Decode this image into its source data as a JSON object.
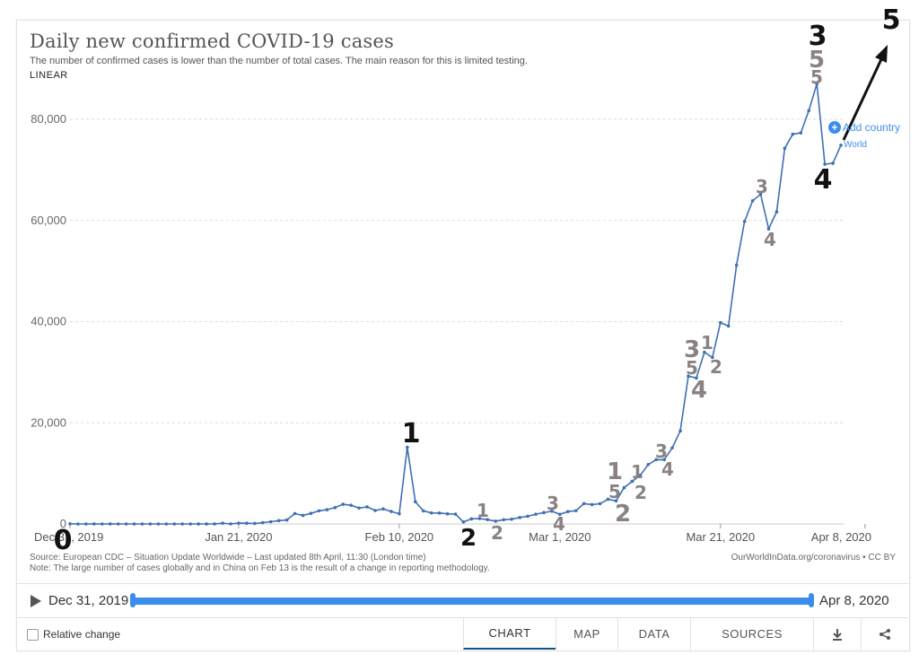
{
  "header": {
    "title": "Daily new confirmed COVID-19 cases",
    "subtitle": "The number of confirmed cases is lower than the number of total cases. The main reason for this is limited testing.",
    "scale": "LINEAR"
  },
  "controls": {
    "add_country": "Add country",
    "series_label": "World"
  },
  "footer_notes": {
    "source": "Source: European CDC – Situation Update Worldwide – Last updated 8th April, 11:30 (London time)",
    "note": "Note: The large number of cases globally and in China on Feb 13 is the result of a change in reporting methodology.",
    "owid": "OurWorldInData.org/coronavirus • CC BY"
  },
  "timeline": {
    "play_icon": "play-icon",
    "start": "Dec 31, 2019",
    "end": "Apr 8, 2020"
  },
  "bottom_bar": {
    "relative_change": "Relative change",
    "tabs": [
      "CHART",
      "MAP",
      "DATA",
      "SOURCES"
    ],
    "active_tab": "CHART",
    "download_icon": "download-icon",
    "share_icon": "share-icon"
  },
  "colors": {
    "line": "#3f6fb5",
    "accent": "#3d8ded",
    "annotation_black": "#111111",
    "annotation_gray": "#8a8282"
  },
  "chart_data": {
    "type": "line",
    "title": "Daily new confirmed COVID-19 cases",
    "xlabel": "",
    "ylabel": "",
    "x_ticks": [
      "Dec 31, 2019",
      "Jan 21, 2020",
      "Feb 10, 2020",
      "Mar 1, 2020",
      "Mar 21, 2020",
      "Apr 8, 2020"
    ],
    "y_ticks": [
      "0",
      "20,000",
      "40,000",
      "60,000",
      "80,000"
    ],
    "ylim": [
      0,
      90000
    ],
    "grid": "horizontal-dashed",
    "series": [
      {
        "name": "World",
        "values": [
          27,
          0,
          0,
          17,
          0,
          15,
          0,
          0,
          0,
          0,
          0,
          1,
          0,
          0,
          0,
          1,
          5,
          4,
          17,
          136,
          19,
          151,
          140,
          97,
          259,
          441,
          665,
          787,
          2062,
          1690,
          2099,
          2589,
          2825,
          3235,
          3884,
          3694,
          3143,
          3385,
          2652,
          2984,
          2473,
          2022,
          15153,
          4398,
          2587,
          2187,
          2160,
          2002,
          1945,
          396,
          1008,
          1079,
          858,
          557,
          837,
          946,
          1269,
          1517,
          1927,
          2243,
          2536,
          1897,
          2449,
          2617,
          4025,
          3826,
          4011,
          4883,
          4560,
          7165,
          8432,
          9619,
          11745,
          12712,
          12697,
          15054,
          18396,
          29232,
          28854,
          33960,
          32916,
          39803,
          39126,
          51173,
          59822,
          63888,
          65181,
          58348,
          61713,
          74273,
          77055,
          77322,
          81708,
          87030,
          71130,
          71318,
          74883
        ]
      }
    ],
    "annotations": [
      {
        "text": "0",
        "x_index": 0,
        "color": "black",
        "size": "large"
      },
      {
        "text": "1",
        "x_index": 42,
        "color": "black",
        "size": "large"
      },
      {
        "text": "2",
        "x_index": 49,
        "color": "black",
        "size": "large"
      },
      {
        "text": "1",
        "x_index": 50,
        "color": "gray",
        "size": "small"
      },
      {
        "text": "2",
        "x_index": 52,
        "color": "gray",
        "size": "small"
      },
      {
        "text": "3",
        "x_index": 59,
        "color": "gray",
        "size": "small"
      },
      {
        "text": "4",
        "x_index": 60,
        "color": "gray",
        "size": "small"
      },
      {
        "text": "1",
        "x_index": 66,
        "color": "gray",
        "size": "large"
      },
      {
        "text": "5",
        "x_index": 66,
        "color": "gray",
        "size": "small"
      },
      {
        "text": "2",
        "x_index": 67,
        "color": "gray",
        "size": "large"
      },
      {
        "text": "1",
        "x_index": 70,
        "color": "gray",
        "size": "small"
      },
      {
        "text": "2",
        "x_index": 71,
        "color": "gray",
        "size": "small"
      },
      {
        "text": "3",
        "x_index": 74,
        "color": "gray",
        "size": "small"
      },
      {
        "text": "4",
        "x_index": 75,
        "color": "gray",
        "size": "small"
      },
      {
        "text": "3",
        "x_index": 77,
        "color": "gray",
        "size": "large"
      },
      {
        "text": "5",
        "x_index": 77,
        "color": "gray",
        "size": "small"
      },
      {
        "text": "4",
        "x_index": 78,
        "color": "gray",
        "size": "large"
      },
      {
        "text": "1",
        "x_index": 79,
        "color": "gray",
        "size": "small"
      },
      {
        "text": "2",
        "x_index": 80,
        "color": "gray",
        "size": "small"
      },
      {
        "text": "3",
        "x_index": 85,
        "color": "gray",
        "size": "small"
      },
      {
        "text": "4",
        "x_index": 86,
        "color": "gray",
        "size": "small"
      },
      {
        "text": "3",
        "x_index": 93,
        "color": "black",
        "size": "large"
      },
      {
        "text": "5",
        "x_index": 93,
        "color": "gray",
        "size": "large"
      },
      {
        "text": "5",
        "x_index": 93,
        "color": "gray",
        "size": "small"
      },
      {
        "text": "4",
        "x_index": 94,
        "color": "black",
        "size": "large"
      },
      {
        "text": "5",
        "x_index": 99,
        "color": "black",
        "size": "large"
      }
    ]
  }
}
